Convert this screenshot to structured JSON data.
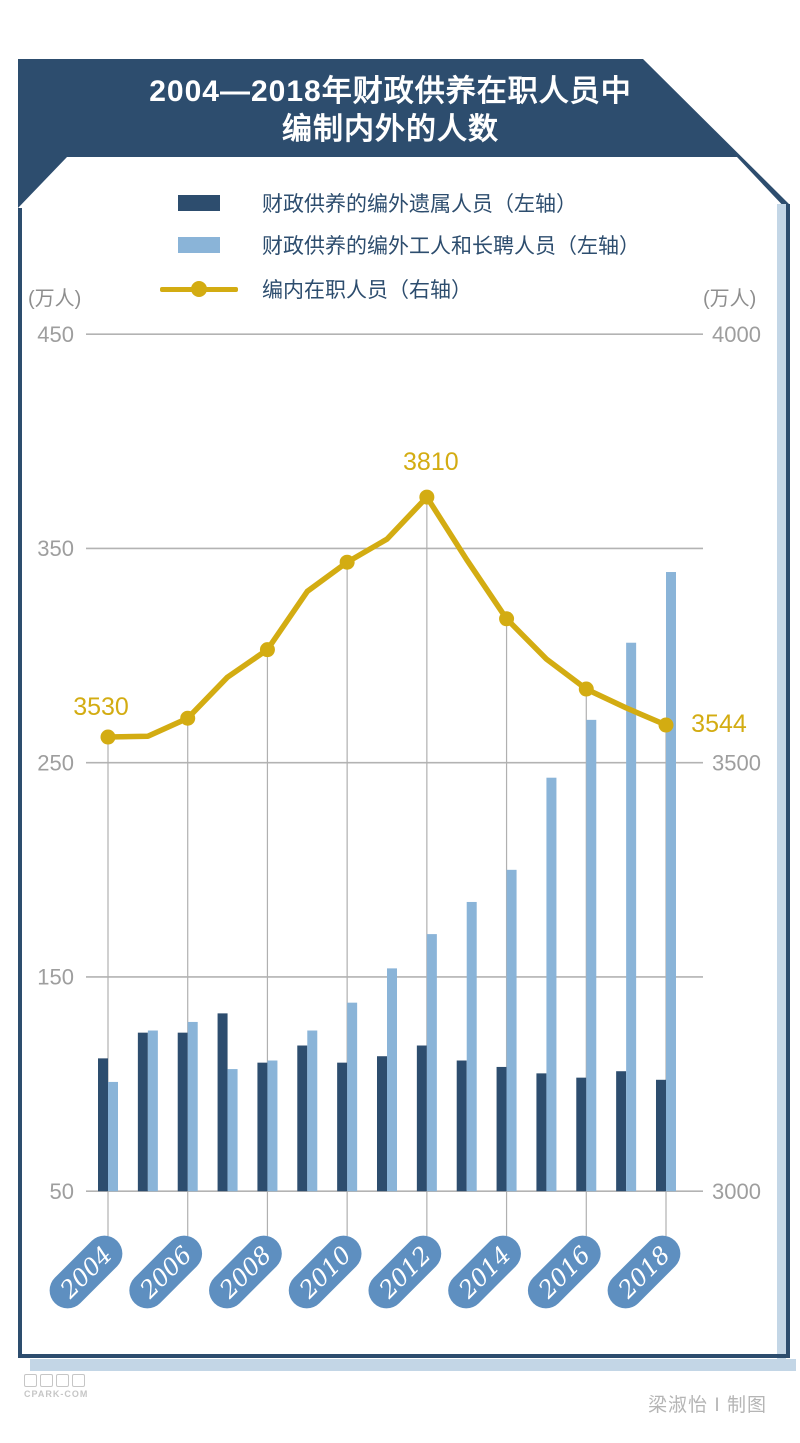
{
  "header": {
    "title_line1": "2004—2018年财政供养在职人员中",
    "title_line2": "编制内外的人数"
  },
  "legend": [
    {
      "label": "财政供养的编外遗属人员（左轴）",
      "type": "swatch",
      "color": "#2d4d6e"
    },
    {
      "label": "财政供养的编外工人和长聘人员（左轴）",
      "type": "swatch",
      "color": "#8ab4d8"
    },
    {
      "label": "编内在职人员（右轴）",
      "type": "line",
      "color": "#d3ac12"
    }
  ],
  "axes": {
    "left_unit": "(万人)",
    "right_unit": "(万人)",
    "left_ticks": [
      450,
      350,
      250,
      150,
      50
    ],
    "right_ticks": [
      4000,
      3500,
      3000
    ]
  },
  "chart_data": {
    "type": "bar",
    "title": "2004—2018年财政供养在职人员中编制内外的人数",
    "x": [
      2004,
      2005,
      2006,
      2007,
      2008,
      2009,
      2010,
      2011,
      2012,
      2013,
      2014,
      2015,
      2016,
      2017,
      2018
    ],
    "x_axis_labels": [
      "2004",
      "2006",
      "2008",
      "2010",
      "2012",
      "2014",
      "2016",
      "2018"
    ],
    "left_ylim": [
      50,
      450
    ],
    "right_ylim": [
      3000,
      4000
    ],
    "grid": true,
    "legend_position": "top",
    "series": [
      {
        "name": "财政供养的编外遗属人员（左轴）",
        "type": "bar",
        "axis": "left",
        "color": "#2d4d6e",
        "values": [
          112,
          124,
          124,
          133,
          110,
          118,
          110,
          113,
          118,
          111,
          108,
          105,
          103,
          106,
          102
        ]
      },
      {
        "name": "财政供养的编外工人和长聘人员（左轴）",
        "type": "bar",
        "axis": "left",
        "color": "#8ab4d8",
        "values": [
          101,
          125,
          129,
          107,
          111,
          125,
          138,
          154,
          170,
          185,
          200,
          243,
          270,
          306,
          339
        ]
      },
      {
        "name": "编内在职人员（右轴）",
        "type": "line",
        "axis": "right",
        "color": "#d3ac12",
        "values": [
          3530,
          3531,
          3552,
          3600,
          3632,
          3700,
          3734,
          3761,
          3810,
          3737,
          3668,
          3621,
          3586,
          3564,
          3544
        ]
      }
    ],
    "annotations": [
      {
        "x": 2004,
        "text": "3530"
      },
      {
        "x": 2012,
        "text": "3810"
      },
      {
        "x": 2018,
        "text": "3544"
      }
    ]
  },
  "footer": {
    "credit": "梁淑怡 I 制图",
    "watermark": "CPARK-COM"
  },
  "colors": {
    "banner": "#2d4d6e",
    "bar_dark": "#2d4d6e",
    "bar_light": "#8ab4d8",
    "line": "#d3ac12",
    "pill": "#5e8fc0",
    "pill_text": "#ffffff",
    "grid": "#b3b3b3",
    "tick_text": "#9e9e9e",
    "vline": "#b0b0b0",
    "shadow": "#c3d6e6",
    "title_text": "#ffffff",
    "legend_text": "#2d4d6e",
    "credit_text": "#b5b5b5",
    "page_bg": "#ffffff"
  }
}
